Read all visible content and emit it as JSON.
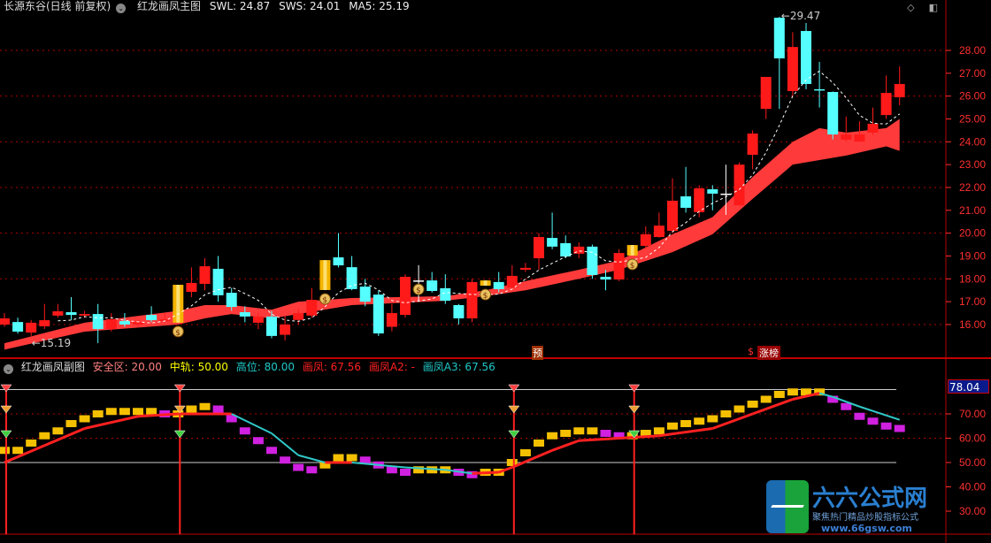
{
  "header": {
    "stock": "长源东谷(日线 前复权)",
    "indicator": "红龙画凤主图",
    "swl": "SWL: 24.87",
    "sws": "SWS: 24.01",
    "ma5": "MA5: 25.19"
  },
  "sub_header": {
    "indicator": "红龙画凤副图",
    "safe": "安全区: 20.00",
    "mid": "中轨: 50.00",
    "high": "高位: 80.00",
    "feng": "画凤: 67.56",
    "feng_a2": "画凤A2: -",
    "feng_a3": "画凤A3: 67.56"
  },
  "markers": {
    "yu": "预",
    "dollar": "$",
    "zhangbang": "涨榜"
  },
  "current_sub_value": "78.04",
  "logo": {
    "title": "六六公式网",
    "subtitle": "聚焦热门精品炒股指标公式",
    "url": "www.66gsw.com"
  },
  "colors": {
    "up": "#ff1a1a",
    "down": "#55ffff",
    "highlight": "#f5b400",
    "band": "#ff3a3a",
    "feng_up": "#ff2020",
    "feng_down": "#30c8c8",
    "bar_up": "#f5c000",
    "bar_down": "#d020e0",
    "axis": "#ff3030"
  },
  "chart_data": [
    {
      "type": "candlestick",
      "title": "红龙画凤主图",
      "ylim": [
        15,
        30
      ],
      "yticks": [
        "16.00",
        "17.00",
        "18.00",
        "19.00",
        "20.00",
        "21.00",
        "22.00",
        "23.00",
        "24.00",
        "25.00",
        "26.00",
        "27.00",
        "28.00"
      ],
      "grid": true,
      "annotations": {
        "low_label": "←15.19",
        "low_index": 7,
        "high_label": "←29.47",
        "high_index": 58
      },
      "candles": [
        [
          16.0,
          16.27,
          16.5,
          15.9,
          "n"
        ],
        [
          16.11,
          15.69,
          16.3,
          15.6,
          "n"
        ],
        [
          15.65,
          16.08,
          16.2,
          15.5,
          "n"
        ],
        [
          15.92,
          16.19,
          16.9,
          15.8,
          "n"
        ],
        [
          16.39,
          16.58,
          16.9,
          16.3,
          "n"
        ],
        [
          16.54,
          16.42,
          17.2,
          16.2,
          "n"
        ],
        [
          16.39,
          16.46,
          16.6,
          16.3,
          "n"
        ],
        [
          16.46,
          15.8,
          16.9,
          15.19,
          "n"
        ],
        [
          15.8,
          16.23,
          16.5,
          15.7,
          "n"
        ],
        [
          16.15,
          16.0,
          16.5,
          15.9,
          "n"
        ],
        [
          16.0,
          16.11,
          16.2,
          15.9,
          "n"
        ],
        [
          16.42,
          16.19,
          16.8,
          16.1,
          "n"
        ],
        [
          16.15,
          16.23,
          16.5,
          16.1,
          "n"
        ],
        [
          16.08,
          17.74,
          17.74,
          16.08,
          "h"
        ],
        [
          17.43,
          17.82,
          18.5,
          17.2,
          "n"
        ],
        [
          17.78,
          18.55,
          18.9,
          17.5,
          "n"
        ],
        [
          18.44,
          17.28,
          19.0,
          17.0,
          "n"
        ],
        [
          17.39,
          16.77,
          17.6,
          16.6,
          "n"
        ],
        [
          16.54,
          16.35,
          16.8,
          16.1,
          "n"
        ],
        [
          16.08,
          16.35,
          16.5,
          15.8,
          "n"
        ],
        [
          16.35,
          15.5,
          16.6,
          15.4,
          "n"
        ],
        [
          15.55,
          16.0,
          16.4,
          15.3,
          "n"
        ],
        [
          16.2,
          16.5,
          16.7,
          16.0,
          "n"
        ],
        [
          16.39,
          17.08,
          17.6,
          16.3,
          "n"
        ],
        [
          17.51,
          18.82,
          18.82,
          17.51,
          "h"
        ],
        [
          18.94,
          18.59,
          20.0,
          18.5,
          "n"
        ],
        [
          18.51,
          17.55,
          19.0,
          17.5,
          "n"
        ],
        [
          17.66,
          17.0,
          18.0,
          16.8,
          "n"
        ],
        [
          17.31,
          15.61,
          17.5,
          15.5,
          "n"
        ],
        [
          15.9,
          16.5,
          16.9,
          15.7,
          "n"
        ],
        [
          16.42,
          18.09,
          18.2,
          16.3,
          "n"
        ],
        [
          17.93,
          17.93,
          18.6,
          17.0,
          "c"
        ],
        [
          17.93,
          17.47,
          18.3,
          17.4,
          "n"
        ],
        [
          17.59,
          17.04,
          18.2,
          16.9,
          "n"
        ],
        [
          16.85,
          16.27,
          16.9,
          16.0,
          "n"
        ],
        [
          16.27,
          17.86,
          18.0,
          16.1,
          "n"
        ],
        [
          17.7,
          17.93,
          17.93,
          17.7,
          "h"
        ],
        [
          17.86,
          17.55,
          18.3,
          17.4,
          "n"
        ],
        [
          17.62,
          18.13,
          18.6,
          17.5,
          "n"
        ],
        [
          18.4,
          18.48,
          18.7,
          18.3,
          "n"
        ],
        [
          18.9,
          19.83,
          20.0,
          18.4,
          "n"
        ],
        [
          19.79,
          19.41,
          20.9,
          19.3,
          "n"
        ],
        [
          19.56,
          18.98,
          19.9,
          18.9,
          "n"
        ],
        [
          19.1,
          19.41,
          19.6,
          18.9,
          "n"
        ],
        [
          19.41,
          18.17,
          19.5,
          18.0,
          "n"
        ],
        [
          18.09,
          17.97,
          18.4,
          17.5,
          "n"
        ],
        [
          17.97,
          19.13,
          19.3,
          17.9,
          "n"
        ],
        [
          19.02,
          19.48,
          19.48,
          19.02,
          "h"
        ],
        [
          19.44,
          19.95,
          20.3,
          19.3,
          "n"
        ],
        [
          19.83,
          20.33,
          20.9,
          19.8,
          "n"
        ],
        [
          20.1,
          21.42,
          22.4,
          20.0,
          "n"
        ],
        [
          21.61,
          21.11,
          22.9,
          20.9,
          "n"
        ],
        [
          20.92,
          21.96,
          22.1,
          20.7,
          "n"
        ],
        [
          21.92,
          21.73,
          22.1,
          21.0,
          "n"
        ],
        [
          21.73,
          21.73,
          23.0,
          20.8,
          "c"
        ],
        [
          21.22,
          23.0,
          23.1,
          21.2,
          "n"
        ],
        [
          23.43,
          24.36,
          24.5,
          22.8,
          "n"
        ],
        [
          25.44,
          26.84,
          26.84,
          25.0,
          "n"
        ],
        [
          29.43,
          27.65,
          29.47,
          25.44,
          "n"
        ],
        [
          26.22,
          28.15,
          28.8,
          26.0,
          "n"
        ],
        [
          28.85,
          26.53,
          29.2,
          26.3,
          "n"
        ],
        [
          26.3,
          26.3,
          27.5,
          25.5,
          "d"
        ],
        [
          26.18,
          24.32,
          26.2,
          24.1,
          "n"
        ],
        [
          24.09,
          24.32,
          25.1,
          24.0,
          "n"
        ],
        [
          24.01,
          24.32,
          24.9,
          24.0,
          "n"
        ],
        [
          24.4,
          24.79,
          25.5,
          24.3,
          "n"
        ],
        [
          25.17,
          26.14,
          26.9,
          25.0,
          "n"
        ],
        [
          25.95,
          26.53,
          27.3,
          25.6,
          "n"
        ]
      ],
      "band": [
        [
          0,
          15.18,
          14.9
        ],
        [
          6,
          16.08,
          15.69
        ],
        [
          13,
          16.6,
          16.0
        ],
        [
          15,
          16.85,
          16.27
        ],
        [
          17,
          16.85,
          16.46
        ],
        [
          20,
          16.65,
          16.27
        ],
        [
          22,
          17.0,
          16.46
        ],
        [
          26,
          17.16,
          16.85
        ],
        [
          33,
          17.24,
          17.04
        ],
        [
          36,
          17.5,
          17.24
        ],
        [
          39,
          17.9,
          17.5
        ],
        [
          43,
          18.4,
          18.0
        ],
        [
          46,
          18.8,
          18.4
        ],
        [
          50,
          19.95,
          19.17
        ],
        [
          53,
          20.7,
          19.95
        ],
        [
          56,
          22.46,
          21.5
        ],
        [
          59,
          24.0,
          23.0
        ],
        [
          61,
          24.6,
          23.2
        ],
        [
          63,
          24.4,
          23.4
        ],
        [
          66,
          24.6,
          23.8
        ],
        [
          67,
          25.0,
          23.6
        ]
      ],
      "money_bag_indices": [
        13,
        24,
        31,
        36,
        47
      ]
    },
    {
      "type": "line+bar",
      "title": "红龙画凤副图",
      "ylim": [
        25,
        85
      ],
      "yticks": [
        "30.00",
        "40.00",
        "50.00",
        "60.00",
        "70.00"
      ],
      "reference_lines": [
        80,
        50
      ],
      "dotted_lines": [
        70,
        60
      ],
      "line": [
        [
          0,
          50
        ],
        [
          3,
          57
        ],
        [
          6,
          64
        ],
        [
          10,
          69
        ],
        [
          13,
          70
        ],
        [
          17,
          70
        ],
        [
          20,
          62
        ],
        [
          22,
          53
        ],
        [
          24,
          50
        ],
        [
          26,
          50
        ],
        [
          28,
          49
        ],
        [
          30,
          48
        ],
        [
          33,
          47
        ],
        [
          35,
          45.5
        ],
        [
          37,
          46
        ],
        [
          38,
          48
        ],
        [
          41,
          55
        ],
        [
          43,
          59
        ],
        [
          46,
          60
        ],
        [
          49,
          61
        ],
        [
          53,
          64
        ],
        [
          56,
          70
        ],
        [
          59,
          76
        ],
        [
          61,
          78.5
        ],
        [
          62,
          77
        ],
        [
          64,
          73
        ],
        [
          67,
          67.56
        ]
      ],
      "bars": [
        55,
        55,
        58,
        61,
        63,
        66,
        68,
        70,
        71,
        71,
        71,
        71,
        70,
        70,
        72,
        73,
        72,
        68,
        63,
        59,
        55,
        51,
        48,
        47,
        49,
        52,
        52,
        51,
        49,
        47,
        46,
        47,
        47,
        47,
        46,
        45,
        46,
        46,
        50,
        54,
        58,
        61,
        62,
        63,
        63,
        62,
        61,
        61,
        62,
        63,
        65,
        66,
        67,
        68,
        70,
        72,
        74,
        76,
        78,
        79,
        79,
        79,
        76,
        73,
        69,
        67,
        65,
        64
      ],
      "signal_indices": [
        0,
        13,
        38,
        47
      ]
    }
  ]
}
